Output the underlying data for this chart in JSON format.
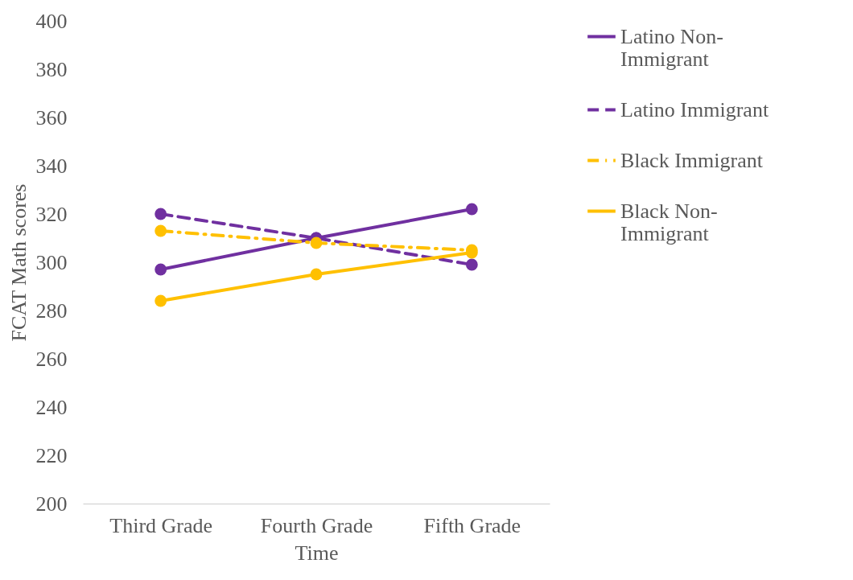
{
  "chart_data": {
    "type": "line",
    "xlabel": "Time",
    "ylabel": "FCAT Math scores",
    "categories": [
      "Third Grade",
      "Fourth Grade",
      "Fifth Grade"
    ],
    "series": [
      {
        "name": "Latino Non-Immigrant",
        "color": "#7030a0",
        "line_style": "solid",
        "values": [
          297,
          310,
          322
        ]
      },
      {
        "name": "Latino Immigrant",
        "color": "#7030a0",
        "line_style": "dashed",
        "values": [
          320,
          310,
          299
        ]
      },
      {
        "name": "Black Immigrant",
        "color": "#ffc000",
        "line_style": "dotted",
        "values": [
          313,
          308,
          305
        ]
      },
      {
        "name": "Black Non-Immigrant",
        "color": "#ffc000",
        "line_style": "solid",
        "values": [
          284,
          295,
          304
        ]
      }
    ],
    "ylim": [
      200,
      400
    ],
    "yticks": [
      200,
      220,
      240,
      260,
      280,
      300,
      320,
      340,
      360,
      380,
      400
    ],
    "marker": "circle",
    "legend": "right"
  }
}
